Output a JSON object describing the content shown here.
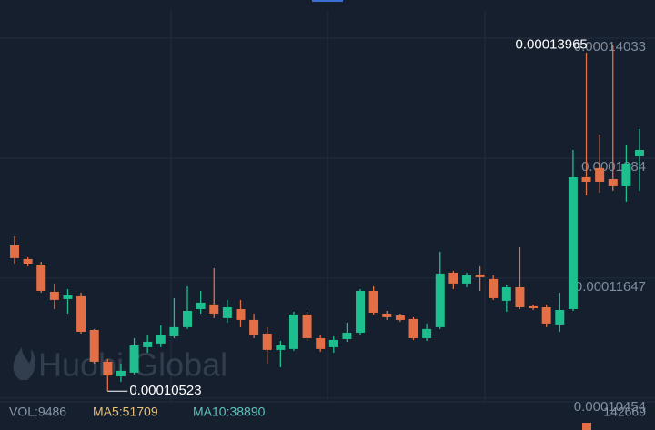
{
  "chart_data": {
    "type": "candlestick",
    "up_color": "#1dbf8e",
    "down_color": "#e36f46",
    "ylim": [
      0.00010064,
      0.00014413
    ],
    "yticks": [
      0.00014033,
      0.0001284,
      0.00011647,
      0.00010454
    ],
    "grid": true,
    "series": {
      "open": [
        0.00011972,
        0.00011837,
        0.00011782,
        0.00011511,
        0.00011439,
        0.00011466,
        0.00011131,
        0.00010815,
        0.0001067,
        0.00010707,
        0.0001096,
        0.00010996,
        0.00011068,
        0.00011159,
        0.00011339,
        0.00011385,
        0.00011249,
        0.00011339,
        0.00011231,
        0.00011095,
        0.00010933,
        0.00010942,
        0.00011285,
        0.0001105,
        0.0001096,
        0.00011041,
        0.00011104,
        0.0001152,
        0.00011294,
        0.00011276,
        0.0001124,
        0.0001105,
        0.00011159,
        0.00011701,
        0.00011593,
        0.00011683,
        0.00011638,
        0.00011421,
        0.00011556,
        0.00011367,
        0.00011357,
        0.00011186,
        0.00011339,
        0.0001265,
        0.00012741,
        0.00012632,
        0.0001256,
        0.00012858
      ],
      "high": [
        0.00012063,
        0.00011855,
        0.00011809,
        0.00011593,
        0.00011538,
        0.00011502,
        0.00011141,
        0.00010842,
        0.00010797,
        0.0001105,
        0.00011086,
        0.00011177,
        0.00011448,
        0.00011565,
        0.0001152,
        0.00011746,
        0.0001143,
        0.0001143,
        0.00011294,
        0.00011159,
        0.00011023,
        0.00011312,
        0.00011312,
        0.00011086,
        0.00011068,
        0.00011204,
        0.00011538,
        0.00011565,
        0.00011321,
        0.00011294,
        0.00011258,
        0.00011195,
        0.00011909,
        0.00011719,
        0.00011701,
        0.00011764,
        0.00011674,
        0.00011583,
        0.00011954,
        0.00011385,
        0.00011385,
        0.00011502,
        0.00012921,
        0.00013889,
        0.00013075,
        0.00013965,
        0.00012967,
        0.00013129
      ],
      "low": [
        0.00011791,
        0.00011764,
        0.00011502,
        0.00011339,
        0.00011294,
        0.00011095,
        0.00010797,
        0.00010523,
        0.00010616,
        0.00010689,
        0.00010905,
        0.0001096,
        0.0001105,
        0.00011141,
        0.00011294,
        0.00011249,
        0.00011204,
        0.00011159,
        0.0001105,
        0.00010797,
        0.00010761,
        0.00010924,
        0.00011023,
        0.00010915,
        0.00010905,
        0.00011014,
        0.00011086,
        0.00011285,
        0.00011231,
        0.00011213,
        0.00011032,
        0.00011023,
        0.00011141,
        0.00011538,
        0.00011556,
        0.0001152,
        0.0001143,
        0.00011312,
        0.00011339,
        0.0001133,
        0.00011159,
        0.00011113,
        0.00011321,
        0.00012469,
        0.00012497,
        0.00012515,
        0.00012406,
        0.00012515
      ],
      "close": [
        0.00011846,
        0.00011791,
        0.0001152,
        0.0001143,
        0.00011475,
        0.00011113,
        0.00010815,
        0.00010679,
        0.00010725,
        0.00010978,
        0.00011014,
        0.00011086,
        0.00011159,
        0.00011321,
        0.00011403,
        0.00011294,
        0.00011357,
        0.00011231,
        0.00011086,
        0.00010933,
        0.00010978,
        0.00011285,
        0.0001105,
        0.00010942,
        0.00011032,
        0.00011104,
        0.0001152,
        0.00011303,
        0.00011258,
        0.00011231,
        0.0001105,
        0.00011141,
        0.00011692,
        0.00011593,
        0.00011674,
        0.00011656,
        0.00011448,
        0.00011556,
        0.00011357,
        0.00011348,
        0.00011195,
        0.0001133,
        0.0001265,
        0.00012605,
        0.00012605,
        0.0001256,
        0.00012786,
        0.00012921
      ]
    },
    "watermark": "Huobi Global",
    "volume_labels": [
      "VOL:9486",
      "MA5:51709",
      "MA10:38890"
    ],
    "volume_axis_label": "142669"
  }
}
